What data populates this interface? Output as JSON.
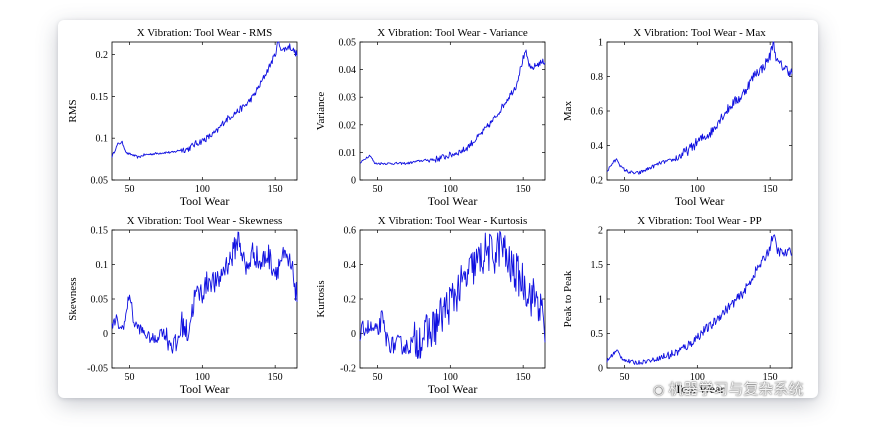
{
  "colors": {
    "series": "#1010e0",
    "axis": "#000000",
    "background": "#ffffff"
  },
  "watermark": {
    "icon": "wechat-icon",
    "text": "机器学习与复杂系统"
  },
  "chart_data": [
    {
      "type": "line",
      "title": "X Vibration: Tool Wear - RMS",
      "xlabel": "Tool Wear",
      "ylabel": "RMS",
      "xlim": [
        38,
        165
      ],
      "ylim": [
        0.05,
        0.215
      ],
      "xticks": [
        50,
        100,
        150
      ],
      "xtick_labels": [
        "50",
        "100",
        "150"
      ],
      "yticks": [
        0.05,
        0.1,
        0.15,
        0.2
      ],
      "ytick_labels": [
        "0.05",
        "0.1",
        "0.15",
        "0.2"
      ],
      "keypoints": [
        [
          38,
          0.078
        ],
        [
          42,
          0.093
        ],
        [
          45,
          0.095
        ],
        [
          48,
          0.082
        ],
        [
          52,
          0.08
        ],
        [
          56,
          0.077
        ],
        [
          60,
          0.08
        ],
        [
          65,
          0.081
        ],
        [
          70,
          0.082
        ],
        [
          75,
          0.083
        ],
        [
          80,
          0.083
        ],
        [
          85,
          0.086
        ],
        [
          90,
          0.087
        ],
        [
          95,
          0.093
        ],
        [
          100,
          0.097
        ],
        [
          105,
          0.102
        ],
        [
          110,
          0.108
        ],
        [
          115,
          0.12
        ],
        [
          120,
          0.127
        ],
        [
          125,
          0.133
        ],
        [
          130,
          0.14
        ],
        [
          135,
          0.15
        ],
        [
          140,
          0.165
        ],
        [
          145,
          0.182
        ],
        [
          150,
          0.2
        ],
        [
          152,
          0.215
        ],
        [
          155,
          0.205
        ],
        [
          160,
          0.21
        ],
        [
          165,
          0.2
        ]
      ],
      "noise": 0.004
    },
    {
      "type": "line",
      "title": "X Vibration: Tool Wear - Variance",
      "xlabel": "Tool Wear",
      "ylabel": "Variance",
      "xlim": [
        38,
        165
      ],
      "ylim": [
        0,
        0.05
      ],
      "xticks": [
        50,
        100,
        150
      ],
      "xtick_labels": [
        "50",
        "100",
        "150"
      ],
      "yticks": [
        0,
        0.01,
        0.02,
        0.03,
        0.04,
        0.05
      ],
      "ytick_labels": [
        "0",
        "0.01",
        "0.02",
        "0.03",
        "0.04",
        "0.05"
      ],
      "keypoints": [
        [
          38,
          0.006
        ],
        [
          42,
          0.008
        ],
        [
          45,
          0.009
        ],
        [
          48,
          0.006
        ],
        [
          55,
          0.006
        ],
        [
          60,
          0.006
        ],
        [
          70,
          0.006
        ],
        [
          80,
          0.007
        ],
        [
          90,
          0.0075
        ],
        [
          100,
          0.009
        ],
        [
          110,
          0.011
        ],
        [
          120,
          0.016
        ],
        [
          130,
          0.022
        ],
        [
          140,
          0.03
        ],
        [
          145,
          0.034
        ],
        [
          150,
          0.044
        ],
        [
          152,
          0.046
        ],
        [
          155,
          0.04
        ],
        [
          160,
          0.042
        ],
        [
          165,
          0.043
        ]
      ],
      "noise": 0.0012
    },
    {
      "type": "line",
      "title": "X Vibration: Tool Wear - Max",
      "xlabel": "Tool Wear",
      "ylabel": "Max",
      "xlim": [
        38,
        165
      ],
      "ylim": [
        0.2,
        1.0
      ],
      "xticks": [
        50,
        100,
        150
      ],
      "xtick_labels": [
        "50",
        "100",
        "150"
      ],
      "yticks": [
        0.2,
        0.4,
        0.6,
        0.8,
        1.0
      ],
      "ytick_labels": [
        "0.2",
        "0.4",
        "0.6",
        "0.8",
        "1"
      ],
      "keypoints": [
        [
          38,
          0.25
        ],
        [
          42,
          0.3
        ],
        [
          45,
          0.32
        ],
        [
          48,
          0.27
        ],
        [
          52,
          0.25
        ],
        [
          56,
          0.24
        ],
        [
          60,
          0.24
        ],
        [
          65,
          0.26
        ],
        [
          70,
          0.28
        ],
        [
          75,
          0.3
        ],
        [
          80,
          0.31
        ],
        [
          85,
          0.32
        ],
        [
          90,
          0.35
        ],
        [
          95,
          0.38
        ],
        [
          100,
          0.42
        ],
        [
          105,
          0.45
        ],
        [
          110,
          0.48
        ],
        [
          115,
          0.55
        ],
        [
          120,
          0.6
        ],
        [
          125,
          0.65
        ],
        [
          130,
          0.68
        ],
        [
          135,
          0.75
        ],
        [
          140,
          0.82
        ],
        [
          145,
          0.85
        ],
        [
          150,
          0.92
        ],
        [
          152,
          1.0
        ],
        [
          155,
          0.88
        ],
        [
          160,
          0.85
        ],
        [
          165,
          0.82
        ]
      ],
      "noise": 0.03
    },
    {
      "type": "line",
      "title": "X Vibration: Tool Wear - Skewness",
      "xlabel": "Tool Wear",
      "ylabel": "Skewness",
      "xlim": [
        38,
        165
      ],
      "ylim": [
        -0.05,
        0.15
      ],
      "xticks": [
        50,
        100,
        150
      ],
      "xtick_labels": [
        "50",
        "100",
        "150"
      ],
      "yticks": [
        -0.05,
        0,
        0.05,
        0.1,
        0.15
      ],
      "ytick_labels": [
        "-0.05",
        "0",
        "0.05",
        "0.1",
        "0.15"
      ],
      "keypoints": [
        [
          38,
          0.01
        ],
        [
          41,
          0.02
        ],
        [
          44,
          0.005
        ],
        [
          47,
          0.018
        ],
        [
          50,
          0.06
        ],
        [
          53,
          0.015
        ],
        [
          58,
          0.005
        ],
        [
          63,
          -0.005
        ],
        [
          68,
          -0.01
        ],
        [
          72,
          0.005
        ],
        [
          77,
          -0.01
        ],
        [
          82,
          -0.02
        ],
        [
          86,
          0.015
        ],
        [
          90,
          0.0
        ],
        [
          95,
          0.055
        ],
        [
          100,
          0.06
        ],
        [
          105,
          0.08
        ],
        [
          110,
          0.07
        ],
        [
          115,
          0.095
        ],
        [
          120,
          0.11
        ],
        [
          125,
          0.14
        ],
        [
          130,
          0.09
        ],
        [
          135,
          0.12
        ],
        [
          140,
          0.1
        ],
        [
          145,
          0.115
        ],
        [
          150,
          0.09
        ],
        [
          155,
          0.11
        ],
        [
          160,
          0.1
        ],
        [
          163,
          0.08
        ],
        [
          165,
          0.05
        ]
      ],
      "noise": 0.018
    },
    {
      "type": "line",
      "title": "X Vibration: Tool Wear - Kurtosis",
      "xlabel": "Tool Wear",
      "ylabel": "Kurtosis",
      "xlim": [
        38,
        165
      ],
      "ylim": [
        -0.2,
        0.6
      ],
      "xticks": [
        50,
        100,
        150
      ],
      "xtick_labels": [
        "50",
        "100",
        "150"
      ],
      "yticks": [
        -0.2,
        0,
        0.2,
        0.4,
        0.6
      ],
      "ytick_labels": [
        "-0.2",
        "0",
        "0.2",
        "0.4",
        "0.6"
      ],
      "keypoints": [
        [
          38,
          -0.02
        ],
        [
          41,
          0.04
        ],
        [
          44,
          0.03
        ],
        [
          47,
          0.02
        ],
        [
          50,
          0.0
        ],
        [
          53,
          0.09
        ],
        [
          56,
          -0.03
        ],
        [
          60,
          -0.07
        ],
        [
          65,
          -0.06
        ],
        [
          70,
          -0.08
        ],
        [
          75,
          -0.05
        ],
        [
          80,
          -0.02
        ],
        [
          85,
          0.0
        ],
        [
          90,
          0.05
        ],
        [
          95,
          0.12
        ],
        [
          100,
          0.18
        ],
        [
          105,
          0.25
        ],
        [
          110,
          0.3
        ],
        [
          115,
          0.38
        ],
        [
          120,
          0.42
        ],
        [
          125,
          0.48
        ],
        [
          130,
          0.45
        ],
        [
          135,
          0.52
        ],
        [
          140,
          0.4
        ],
        [
          145,
          0.35
        ],
        [
          150,
          0.3
        ],
        [
          155,
          0.22
        ],
        [
          160,
          0.2
        ],
        [
          163,
          0.1
        ],
        [
          165,
          0.0
        ]
      ],
      "noise": 0.12
    },
    {
      "type": "line",
      "title": "X Vibration: Tool Wear - PP",
      "xlabel": "Tool Wear",
      "ylabel": "Peak to Peak",
      "xlim": [
        38,
        165
      ],
      "ylim": [
        0,
        2
      ],
      "xticks": [
        50,
        100,
        150
      ],
      "xtick_labels": [
        "50",
        "100",
        "150"
      ],
      "yticks": [
        0,
        0.5,
        1,
        1.5,
        2
      ],
      "ytick_labels": [
        "0",
        "0.5",
        "1",
        "1.5",
        "2"
      ],
      "keypoints": [
        [
          38,
          0.1
        ],
        [
          42,
          0.2
        ],
        [
          45,
          0.25
        ],
        [
          48,
          0.15
        ],
        [
          52,
          0.1
        ],
        [
          56,
          0.08
        ],
        [
          60,
          0.08
        ],
        [
          65,
          0.1
        ],
        [
          70,
          0.12
        ],
        [
          75,
          0.15
        ],
        [
          80,
          0.18
        ],
        [
          85,
          0.22
        ],
        [
          90,
          0.28
        ],
        [
          95,
          0.35
        ],
        [
          100,
          0.45
        ],
        [
          105,
          0.55
        ],
        [
          110,
          0.62
        ],
        [
          115,
          0.75
        ],
        [
          120,
          0.85
        ],
        [
          125,
          0.95
        ],
        [
          130,
          1.05
        ],
        [
          135,
          1.2
        ],
        [
          140,
          1.4
        ],
        [
          145,
          1.55
        ],
        [
          150,
          1.75
        ],
        [
          152,
          1.95
        ],
        [
          155,
          1.7
        ],
        [
          160,
          1.65
        ],
        [
          165,
          1.7
        ]
      ],
      "noise": 0.07
    }
  ]
}
